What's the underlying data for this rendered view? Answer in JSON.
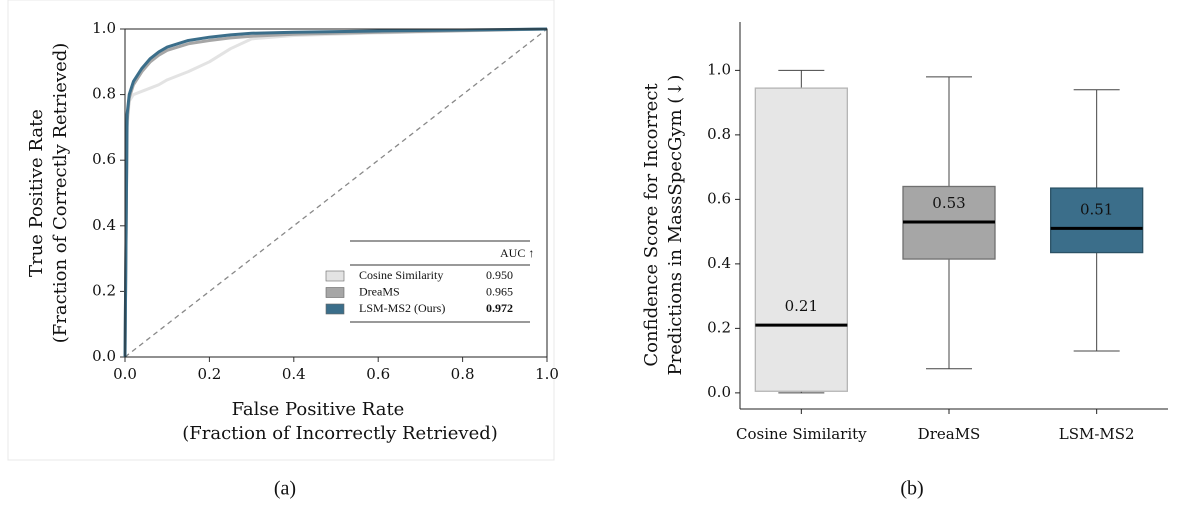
{
  "chart_data": [
    {
      "type": "line",
      "caption": "(a)",
      "xlabel": [
        "False Positive Rate",
        "(Fraction of Incorrectly Retrieved)"
      ],
      "ylabel": [
        "True Positive Rate",
        "(Fraction of Correctly Retrieved)"
      ],
      "xlim": [
        0,
        1
      ],
      "ylim": [
        0,
        1
      ],
      "xticks": [
        {
          "value": 0,
          "label": "0.0"
        },
        0.2,
        0.4,
        0.6,
        0.8,
        {
          "value": 1,
          "label": "1.0"
        }
      ],
      "yticks": [
        {
          "value": 0,
          "label": "0.0"
        },
        0.2,
        0.4,
        0.6,
        0.8,
        {
          "value": 1,
          "label": "1.0"
        }
      ],
      "legend_header": "AUC ↑",
      "x": [
        0,
        0.005,
        0.01,
        0.02,
        0.04,
        0.06,
        0.08,
        0.1,
        0.15,
        0.2,
        0.25,
        0.3,
        0.4,
        0.6,
        0.8,
        1.0
      ],
      "series": [
        {
          "name": "Cosine Similarity",
          "color": "#e3e3e3",
          "auc": {
            "value": 0.95,
            "label": "0.950"
          },
          "values": [
            0,
            0.7,
            0.78,
            0.8,
            0.81,
            0.82,
            0.83,
            0.845,
            0.87,
            0.9,
            0.94,
            0.97,
            0.98,
            0.988,
            0.994,
            1.0
          ]
        },
        {
          "name": "DreaMS",
          "color": "#a6a6a6",
          "auc": {
            "value": 0.965,
            "label": "0.965"
          },
          "values": [
            0,
            0.72,
            0.79,
            0.83,
            0.87,
            0.9,
            0.92,
            0.935,
            0.955,
            0.965,
            0.973,
            0.978,
            0.984,
            0.99,
            0.995,
            1.0
          ]
        },
        {
          "name": "LSM-MS2 (Ours)",
          "color": "#3b6e8a",
          "auc": {
            "value": 0.972,
            "label": "0.972"
          },
          "highlight": true,
          "values": [
            0,
            0.74,
            0.8,
            0.84,
            0.88,
            0.91,
            0.93,
            0.945,
            0.965,
            0.975,
            0.982,
            0.987,
            0.99,
            0.994,
            0.997,
            1.0
          ]
        }
      ]
    },
    {
      "type": "box",
      "caption": "(b)",
      "ylabel": [
        "Confidence Score for Incorrect",
        "Predictions in MassSpecGym (↓)"
      ],
      "ylim": [
        -0.05,
        1.15
      ],
      "yticks": [
        {
          "value": 0,
          "label": "0.0"
        },
        0.2,
        0.4,
        0.6,
        0.8,
        {
          "value": 1,
          "label": "1.0"
        }
      ],
      "categories": [
        "Cosine Similarity",
        "DreaMS",
        "LSM-MS2"
      ],
      "boxes": [
        {
          "color": "#e6e6e6",
          "edge": "#b5b5b5",
          "low": 0.0,
          "q1": 0.005,
          "median": 0.21,
          "q3": 0.945,
          "high": 1.0
        },
        {
          "color": "#a6a6a6",
          "edge": "#707070",
          "low": 0.075,
          "q1": 0.415,
          "median": 0.53,
          "q3": 0.64,
          "high": 0.98
        },
        {
          "color": "#3b6e8a",
          "edge": "#2b5266",
          "low": 0.13,
          "q1": 0.435,
          "median": 0.51,
          "q3": 0.635,
          "high": 0.94
        }
      ]
    }
  ]
}
